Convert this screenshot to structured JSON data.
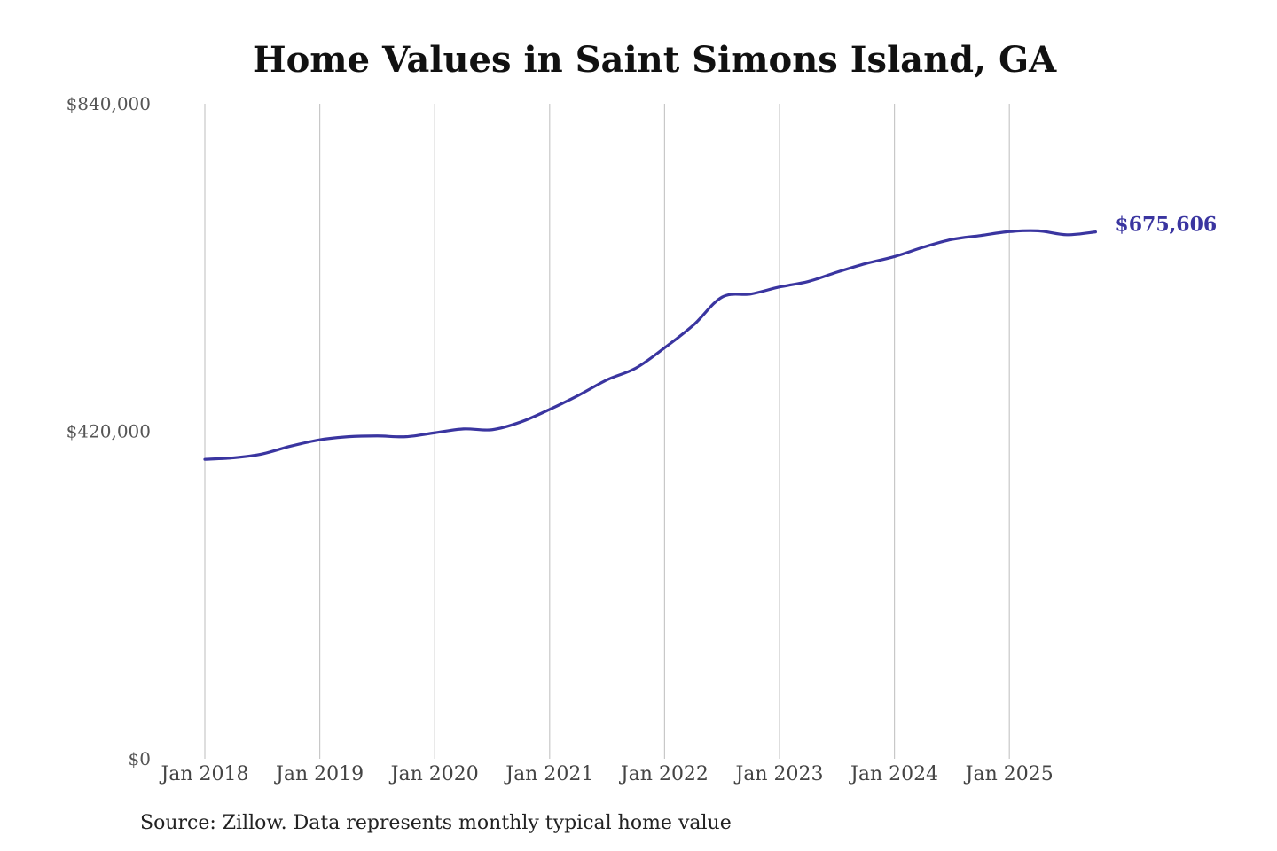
{
  "chart_data": {
    "type": "line",
    "title": "Home Values in Saint Simons Island, GA",
    "source": "Source: Zillow. Data represents monthly typical home value",
    "xlabel": "",
    "ylabel": "",
    "ylim": [
      0,
      840000
    ],
    "y_ticks": [
      0,
      420000,
      840000
    ],
    "y_tick_labels": [
      "$0",
      "$420,000",
      "$840,000"
    ],
    "x_tick_labels": [
      "Jan 2018",
      "Jan 2019",
      "Jan 2020",
      "Jan 2021",
      "Jan 2022",
      "Jan 2023",
      "Jan 2024",
      "Jan 2025"
    ],
    "grid": "vertical",
    "line_color": "#3a35a0",
    "end_label": "$675,606",
    "series": [
      {
        "x": [
          "2018-01",
          "2018-04",
          "2018-07",
          "2018-10",
          "2019-01",
          "2019-04",
          "2019-07",
          "2019-10",
          "2020-01",
          "2020-04",
          "2020-07",
          "2020-10",
          "2021-01",
          "2021-04",
          "2021-07",
          "2021-10",
          "2022-01",
          "2022-04",
          "2022-07",
          "2022-10",
          "2023-01",
          "2023-04",
          "2023-07",
          "2023-10",
          "2024-01",
          "2024-04",
          "2024-07",
          "2024-10",
          "2025-01",
          "2025-04",
          "2025-07",
          "2025-10"
        ],
        "values": [
          384000,
          386000,
          391000,
          401000,
          409000,
          413000,
          414000,
          413000,
          418000,
          423000,
          422000,
          432000,
          448000,
          466000,
          486000,
          501000,
          527000,
          556000,
          592000,
          596000,
          605000,
          612000,
          624000,
          635000,
          644000,
          656000,
          666000,
          671000,
          676000,
          677000,
          672000,
          675606
        ]
      }
    ]
  }
}
